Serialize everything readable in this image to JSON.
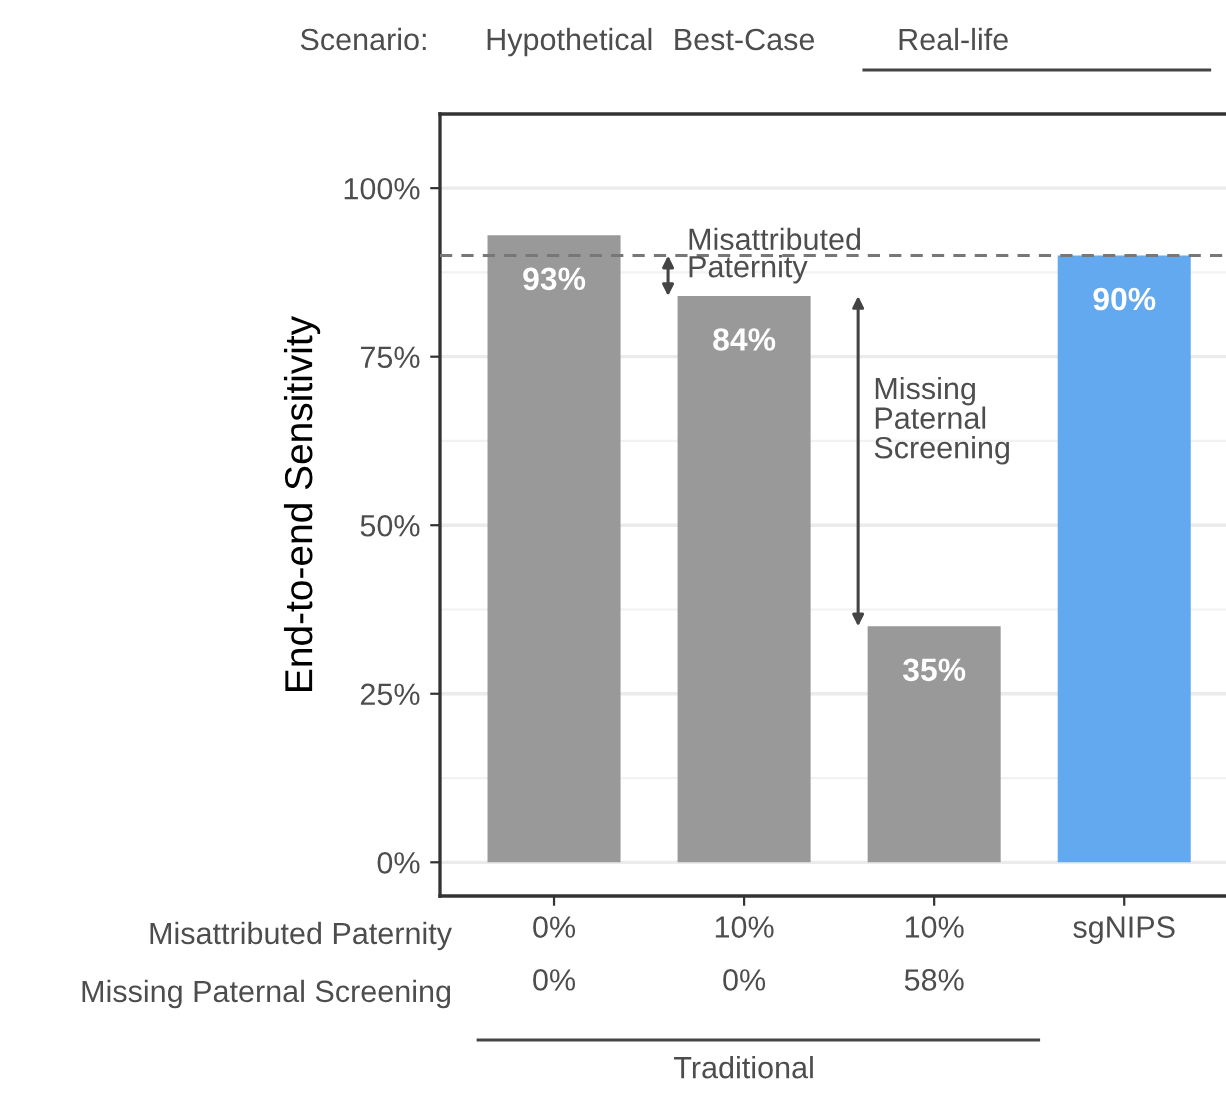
{
  "chart_data": {
    "type": "bar",
    "ylabel": "End-to-end Sensitivity",
    "categories": [
      "0%\n0%",
      "10%\n0%",
      "10%\n58%",
      "sgNIPS"
    ],
    "values": [
      93,
      84,
      35,
      90
    ],
    "colors": [
      "#999999",
      "#999999",
      "#999999",
      "#63a9ef"
    ],
    "data_labels": true,
    "value_labels": [
      "93%",
      "84%",
      "35%",
      "90%"
    ],
    "ylim": [
      -5,
      111
    ],
    "yticks": [
      {
        "value": 0,
        "label": "0%"
      },
      {
        "value": 25,
        "label": "25%"
      },
      {
        "value": 50,
        "label": "50%"
      },
      {
        "value": 75,
        "label": "75%"
      },
      {
        "value": 100,
        "label": "100%"
      }
    ],
    "grid": "y",
    "ref_lines": [
      {
        "axis": "y",
        "value": 90,
        "color": "#777777",
        "line_style": "dashed"
      }
    ],
    "annotations": [
      "Scenario:",
      "Hypothetical",
      "Best-Case",
      "Real-life",
      "Traditional",
      "Misattributed Paternity",
      "Missing Paternal Screening",
      "Misattributed\nPaternity",
      "Missing\nPaternal\nScreening"
    ]
  }
}
